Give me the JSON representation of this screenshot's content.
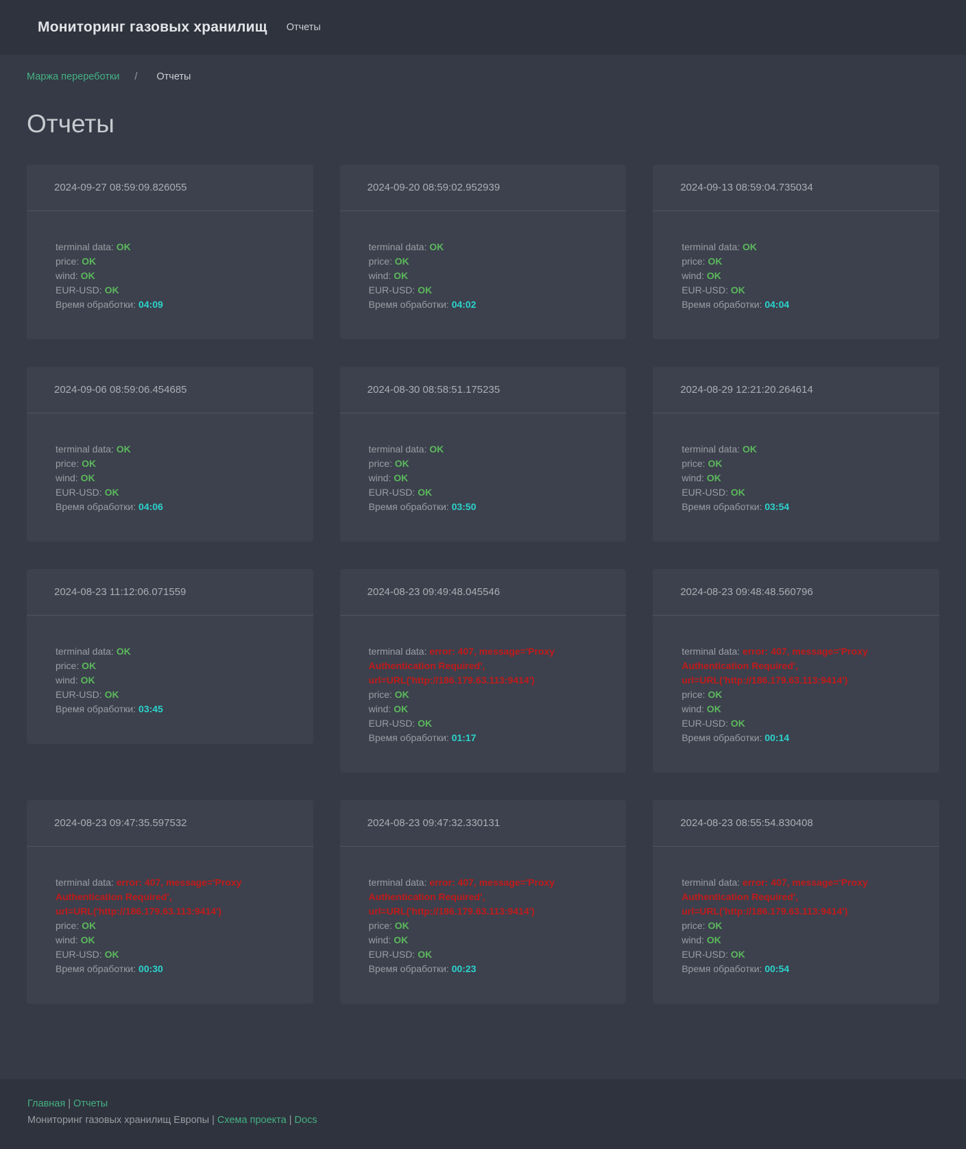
{
  "header": {
    "title": "Мониторинг газовых хранилищ",
    "nav_reports": "Отчеты"
  },
  "breadcrumb": {
    "link": "Маржа перереботки",
    "separator": "/",
    "current": "Отчеты"
  },
  "page": {
    "title": "Отчеты"
  },
  "card_labels": {
    "terminal": "terminal data:",
    "price": "price:",
    "wind": "wind:",
    "eur_usd": "EUR-USD:",
    "processing_time": "Время обработки:"
  },
  "reports": [
    {
      "timestamp": "2024-09-27 08:59:09.826055",
      "terminal_ok": true,
      "terminal": "OK",
      "price": "OK",
      "wind": "OK",
      "eur_usd": "OK",
      "processing_time": "04:09"
    },
    {
      "timestamp": "2024-09-20 08:59:02.952939",
      "terminal_ok": true,
      "terminal": "OK",
      "price": "OK",
      "wind": "OK",
      "eur_usd": "OK",
      "processing_time": "04:02"
    },
    {
      "timestamp": "2024-09-13 08:59:04.735034",
      "terminal_ok": true,
      "terminal": "OK",
      "price": "OK",
      "wind": "OK",
      "eur_usd": "OK",
      "processing_time": "04:04"
    },
    {
      "timestamp": "2024-09-06 08:59:06.454685",
      "terminal_ok": true,
      "terminal": "OK",
      "price": "OK",
      "wind": "OK",
      "eur_usd": "OK",
      "processing_time": "04:06"
    },
    {
      "timestamp": "2024-08-30 08:58:51.175235",
      "terminal_ok": true,
      "terminal": "OK",
      "price": "OK",
      "wind": "OK",
      "eur_usd": "OK",
      "processing_time": "03:50"
    },
    {
      "timestamp": "2024-08-29 12:21:20.264614",
      "terminal_ok": true,
      "terminal": "OK",
      "price": "OK",
      "wind": "OK",
      "eur_usd": "OK",
      "processing_time": "03:54"
    },
    {
      "timestamp": "2024-08-23 11:12:06.071559",
      "terminal_ok": true,
      "terminal": "OK",
      "price": "OK",
      "wind": "OK",
      "eur_usd": "OK",
      "processing_time": "03:45"
    },
    {
      "timestamp": "2024-08-23 09:49:48.045546",
      "terminal_ok": false,
      "terminal": "error: 407, message='Proxy Authentication Required', url=URL('http://186.179.63.113:9414')",
      "price": "OK",
      "wind": "OK",
      "eur_usd": "OK",
      "processing_time": "01:17"
    },
    {
      "timestamp": "2024-08-23 09:48:48.560796",
      "terminal_ok": false,
      "terminal": "error: 407, message='Proxy Authentication Required', url=URL('http://186.179.63.113:9414')",
      "price": "OK",
      "wind": "OK",
      "eur_usd": "OK",
      "processing_time": "00:14"
    },
    {
      "timestamp": "2024-08-23 09:47:35.597532",
      "terminal_ok": false,
      "terminal": "error: 407, message='Proxy Authentication Required', url=URL('http://186.179.63.113:9414')",
      "price": "OK",
      "wind": "OK",
      "eur_usd": "OK",
      "processing_time": "00:30"
    },
    {
      "timestamp": "2024-08-23 09:47:32.330131",
      "terminal_ok": false,
      "terminal": "error: 407, message='Proxy Authentication Required', url=URL('http://186.179.63.113:9414')",
      "price": "OK",
      "wind": "OK",
      "eur_usd": "OK",
      "processing_time": "00:23"
    },
    {
      "timestamp": "2024-08-23 08:55:54.830408",
      "terminal_ok": false,
      "terminal": "error: 407, message='Proxy Authentication Required', url=URL('http://186.179.63.113:9414')",
      "price": "OK",
      "wind": "OK",
      "eur_usd": "OK",
      "processing_time": "00:54"
    }
  ],
  "footer": {
    "home": "Главная",
    "reports": "Отчеты",
    "pipe": "|",
    "site": "Мониторинг газовых хранилищ Европы",
    "schema": "Схема проекта",
    "docs": "Docs"
  },
  "colors": {
    "ok_green": "#5cb85c",
    "error_red": "#c11b1b",
    "time_cyan": "#2cd3cd",
    "link_green": "#44b183",
    "page_bg": "#353a46",
    "bar_bg": "#2f333d",
    "card_bg": "#3c414d"
  }
}
